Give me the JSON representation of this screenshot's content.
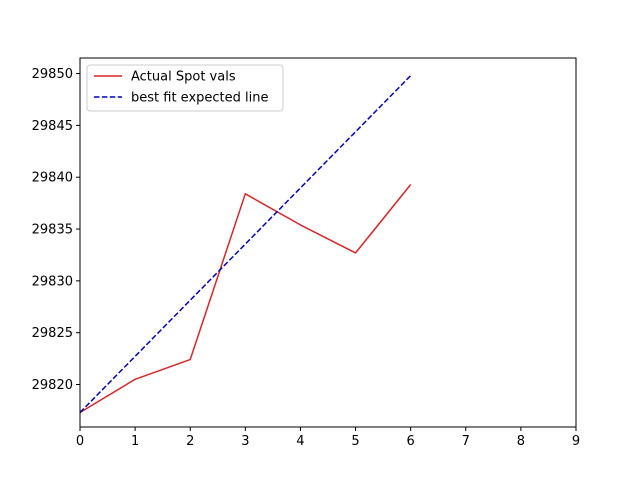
{
  "chart_data": {
    "type": "line",
    "title": "",
    "xlabel": "",
    "ylabel": "",
    "xlim": [
      0,
      9
    ],
    "ylim": [
      29815.9,
      29851.5
    ],
    "xticks": [
      0,
      1,
      2,
      3,
      4,
      5,
      6,
      7,
      8,
      9
    ],
    "yticks": [
      29820,
      29825,
      29830,
      29835,
      29840,
      29845,
      29850
    ],
    "grid": false,
    "legend_position": "upper-left",
    "series": [
      {
        "name": "Actual Spot vals",
        "color": "#d62728",
        "style": "solid",
        "x": [
          0,
          1,
          2,
          3,
          4,
          5,
          6
        ],
        "y": [
          29817.3,
          29820.5,
          29822.4,
          29838.4,
          29835.4,
          29832.7,
          29839.3
        ]
      },
      {
        "name": "best fit expected line",
        "color": "#0000bf",
        "style": "dashed",
        "x": [
          0,
          6
        ],
        "y": [
          29817.3,
          29849.8
        ]
      }
    ]
  }
}
